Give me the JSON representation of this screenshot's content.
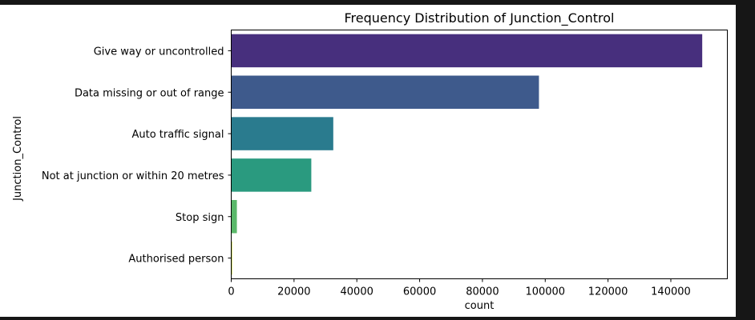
{
  "chart_data": {
    "type": "bar",
    "orientation": "horizontal",
    "title": "Frequency Distribution of Junction_Control",
    "xlabel": "count",
    "ylabel": "Junction_Control",
    "categories": [
      "Give way or uncontrolled",
      "Data missing or out of range",
      "Auto traffic signal",
      "Not at junction or within 20 metres",
      "Stop sign",
      "Authorised person"
    ],
    "values": [
      150000,
      98000,
      32500,
      25500,
      1800,
      300
    ],
    "colors": [
      "#472f7d",
      "#3e5a8c",
      "#2a7b8e",
      "#2a9a7f",
      "#5ab86a",
      "#c8df3e"
    ],
    "xlim": [
      0,
      158000
    ],
    "xticks": [
      0,
      20000,
      40000,
      60000,
      80000,
      100000,
      120000,
      140000
    ],
    "xtick_labels": [
      "0",
      "20000",
      "40000",
      "60000",
      "80000",
      "100000",
      "120000",
      "140000"
    ],
    "grid": false,
    "legend": "none"
  }
}
